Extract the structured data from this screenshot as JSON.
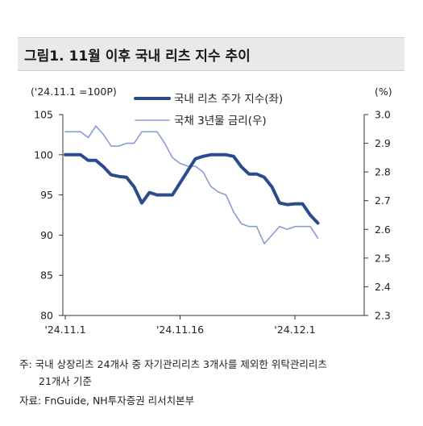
{
  "title": "그림1. 11월 이후 국내 리츠 지수 추이",
  "left_unit": "('24.11.1 =100P)",
  "right_unit": "(%)",
  "notes": {
    "line1": "주: 국내 상장리츠 24개사 중 자기관리리츠 3개사를 제외한 위탁관리리츠",
    "line2": "21개사 기준",
    "source": "자료: FnGuide, NH투자증권 리서치본부"
  },
  "colors": {
    "reits": "#2a4b8d",
    "bond": "#8a9bd1"
  },
  "chart_data": {
    "type": "line",
    "x_ticks": [
      "'24.11.1",
      "'24.11.16",
      "'24.12.1"
    ],
    "x_tick_index": [
      0,
      15,
      30
    ],
    "y_left": {
      "min": 80,
      "max": 105,
      "ticks": [
        80,
        85,
        90,
        95,
        100,
        105
      ]
    },
    "y_right": {
      "min": 2.3,
      "max": 3.0,
      "ticks": [
        "2.3",
        "2.4",
        "2.5",
        "2.6",
        "2.7",
        "2.8",
        "2.9",
        "3.0"
      ]
    },
    "series": [
      {
        "name": "국내 리츠 주가 지수(좌)",
        "axis": "left",
        "values": [
          100.0,
          100.0,
          100.0,
          99.3,
          99.3,
          98.5,
          97.5,
          97.3,
          97.2,
          96.0,
          94.0,
          95.3,
          95.0,
          95.0,
          95.0,
          96.5,
          98.0,
          99.5,
          99.8,
          100.0,
          100.0,
          100.0,
          99.8,
          98.5,
          97.6,
          97.6,
          97.2,
          96.0,
          94.0,
          93.8,
          93.9,
          93.9,
          92.5,
          91.5
        ]
      },
      {
        "name": "국채 3년물 금리(우)",
        "axis": "right",
        "values": [
          2.94,
          2.94,
          2.94,
          2.92,
          2.96,
          2.93,
          2.89,
          2.89,
          2.9,
          2.9,
          2.94,
          2.94,
          2.94,
          2.9,
          2.85,
          2.83,
          2.82,
          2.82,
          2.8,
          2.75,
          2.73,
          2.72,
          2.66,
          2.62,
          2.61,
          2.61,
          2.55,
          2.58,
          2.61,
          2.6,
          2.61,
          2.61,
          2.61,
          2.57
        ]
      }
    ]
  }
}
